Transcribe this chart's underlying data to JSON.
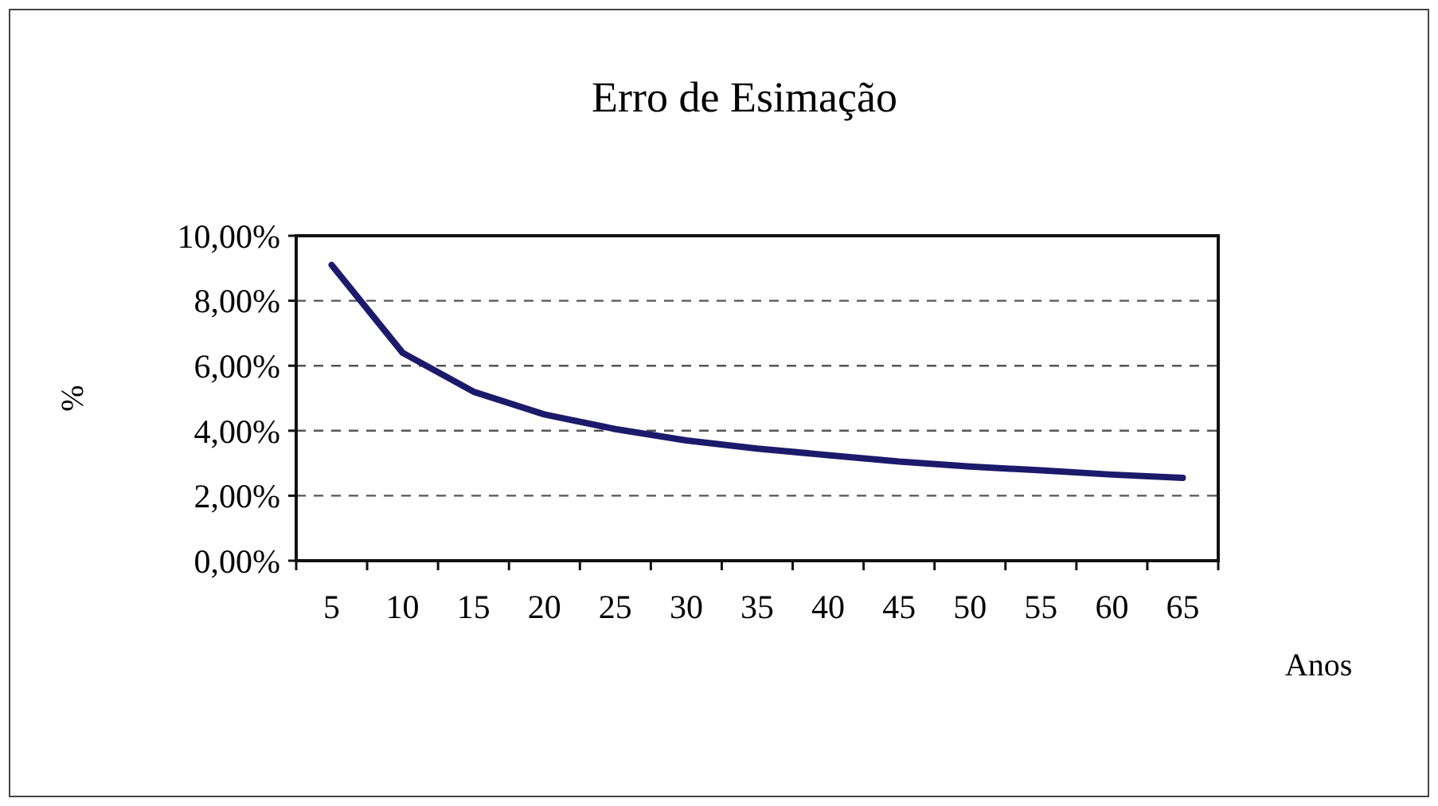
{
  "chart_data": {
    "type": "line",
    "title": "Erro de Esimação",
    "xlabel": "Anos",
    "ylabel": "%",
    "categories": [
      "5",
      "10",
      "15",
      "20",
      "25",
      "30",
      "35",
      "40",
      "45",
      "50",
      "55",
      "60",
      "65"
    ],
    "series": [
      {
        "color": "#1c1a6b",
        "values": [
          9.1,
          6.4,
          5.2,
          4.5,
          4.05,
          3.7,
          3.45,
          3.25,
          3.05,
          2.9,
          2.78,
          2.65,
          2.55
        ]
      }
    ],
    "ylim": [
      0,
      10
    ],
    "yticks": [
      {
        "value": 0,
        "label": "0,00%"
      },
      {
        "value": 2,
        "label": "2,00%"
      },
      {
        "value": 4,
        "label": "4,00%"
      },
      {
        "value": 6,
        "label": "6,00%"
      },
      {
        "value": 8,
        "label": "8,00%"
      },
      {
        "value": 10,
        "label": "10,00%"
      }
    ],
    "grid": "y",
    "marker": "none",
    "line_style": "solid"
  }
}
